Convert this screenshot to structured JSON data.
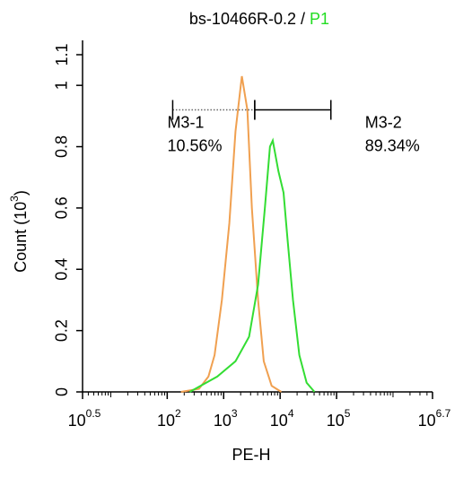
{
  "chart_data": {
    "type": "line",
    "title": "bs-10466R-0.2 /",
    "title_gate": "P1",
    "title_gate_color": "#22dd22",
    "xlabel": "PE-H",
    "ylabel": {
      "text": "Count (10",
      "exponent": "3",
      "tail": ")"
    },
    "xscale": "log",
    "minor_xticks": true,
    "xlim": [
      3.1623,
      5011872
    ],
    "xticks": [
      {
        "value": 3.1623,
        "label": "10",
        "exponent": "0.5"
      },
      {
        "value": 100,
        "label": "10",
        "exponent": "2"
      },
      {
        "value": 1000,
        "label": "10",
        "exponent": "3"
      },
      {
        "value": 10000,
        "label": "10",
        "exponent": "4"
      },
      {
        "value": 100000,
        "label": "10",
        "exponent": "5"
      },
      {
        "value": 5011872,
        "label": "10",
        "exponent": "6.7"
      }
    ],
    "ylim": [
      0,
      1.1
    ],
    "yticks": [
      0,
      0.2,
      0.4,
      0.6,
      0.8,
      1,
      1.1
    ],
    "series": [
      {
        "color": "#f0a050",
        "x": [
          175,
          365,
          537,
          690,
          930,
          1260,
          1620,
          2100,
          2630,
          3160,
          4070,
          5130,
          7080,
          10500
        ],
        "values": [
          0,
          0.01,
          0.05,
          0.12,
          0.3,
          0.55,
          0.85,
          1.03,
          0.92,
          0.6,
          0.3,
          0.1,
          0.02,
          0
        ]
      },
      {
        "color": "#33dd33",
        "x": [
          250,
          770,
          1620,
          2820,
          4070,
          5370,
          6610,
          7410,
          9330,
          11500,
          13500,
          16900,
          21900,
          29500,
          40700
        ],
        "values": [
          0,
          0.05,
          0.1,
          0.18,
          0.35,
          0.6,
          0.8,
          0.82,
          0.72,
          0.65,
          0.5,
          0.3,
          0.12,
          0.03,
          0
        ]
      }
    ],
    "gates": [
      {
        "name": "M3-1",
        "percent": 10.56,
        "percent_label": "10.56%",
        "range": [
          125,
          3550
        ],
        "y": 0.92,
        "style": "dotted"
      },
      {
        "name": "M3-2",
        "percent": 89.34,
        "percent_label": "89.34%",
        "range": [
          3550,
          79400
        ],
        "y": 0.92,
        "style": "solid"
      }
    ]
  }
}
